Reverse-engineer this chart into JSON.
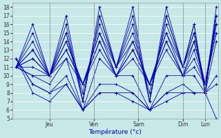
{
  "xlabel": "Température (°c)",
  "bg_color": "#c8e8e8",
  "line_color": "#0000bb",
  "grid_color": "#b0d0d0",
  "ylim": [
    5,
    18.5
  ],
  "yticks": [
    5,
    6,
    7,
    8,
    9,
    10,
    11,
    12,
    13,
    14,
    15,
    16,
    17,
    18
  ],
  "xlim": [
    -2,
    109
  ],
  "day_ticks": [
    18,
    42,
    66,
    90,
    102
  ],
  "day_labels": [
    "Jeu",
    "Ven",
    "Sam",
    "Dim",
    "Lun"
  ],
  "forecast_series": [
    {
      "x": [
        0,
        9,
        18,
        27,
        36,
        45,
        54,
        63,
        72,
        81,
        90,
        96,
        102,
        108
      ],
      "y": [
        11,
        16,
        10,
        17,
        7,
        18,
        11,
        18,
        7,
        18,
        11,
        16,
        8,
        18
      ]
    },
    {
      "x": [
        0,
        9,
        18,
        27,
        36,
        45,
        54,
        63,
        72,
        81,
        90,
        96,
        102,
        108
      ],
      "y": [
        11,
        15,
        10,
        16,
        7,
        17,
        11,
        17,
        7,
        17,
        11,
        16,
        8,
        17
      ]
    },
    {
      "x": [
        0,
        9,
        18,
        27,
        36,
        45,
        54,
        63,
        72,
        81,
        90,
        96,
        102,
        108
      ],
      "y": [
        11,
        14,
        10,
        15,
        7,
        17,
        11,
        16,
        7,
        17,
        11,
        15,
        8,
        17
      ]
    },
    {
      "x": [
        0,
        9,
        18,
        27,
        36,
        45,
        54,
        63,
        72,
        81,
        90,
        96,
        102,
        108
      ],
      "y": [
        11,
        13,
        10,
        15,
        8,
        16,
        11,
        15,
        8,
        16,
        11,
        15,
        9,
        17
      ]
    },
    {
      "x": [
        0,
        9,
        18,
        27,
        36,
        45,
        54,
        63,
        72,
        81,
        90,
        96,
        102,
        108
      ],
      "y": [
        11,
        13,
        10,
        14,
        9,
        15,
        11,
        14,
        9,
        15,
        11,
        14,
        9,
        16
      ]
    },
    {
      "x": [
        0,
        9,
        18,
        27,
        36,
        45,
        54,
        63,
        72,
        81,
        90,
        96,
        102,
        108
      ],
      "y": [
        11,
        12,
        10,
        14,
        9,
        15,
        10,
        14,
        9,
        15,
        10,
        14,
        9,
        16
      ]
    },
    {
      "x": [
        0,
        9,
        18,
        27,
        36,
        45,
        54,
        63,
        72,
        81,
        90,
        96,
        102,
        108
      ],
      "y": [
        11,
        12,
        10,
        13,
        9,
        14,
        10,
        13,
        9,
        14,
        10,
        13,
        9,
        15
      ]
    },
    {
      "x": [
        0,
        9,
        18,
        27,
        36,
        45,
        54,
        63,
        72,
        81,
        90,
        96,
        102,
        108
      ],
      "y": [
        11,
        11,
        10,
        13,
        9,
        14,
        10,
        13,
        9,
        14,
        10,
        12,
        9,
        15
      ]
    },
    {
      "x": [
        0,
        9,
        18,
        27,
        36,
        45,
        54,
        63,
        72,
        81,
        90,
        96,
        102,
        108
      ],
      "y": [
        11,
        10,
        10,
        12,
        9,
        13,
        10,
        12,
        9,
        13,
        10,
        11,
        9,
        16
      ]
    },
    {
      "x": [
        0,
        9,
        18,
        27,
        36,
        45,
        54,
        63,
        72,
        81,
        90,
        96,
        102,
        108
      ],
      "y": [
        11,
        10,
        9,
        12,
        6,
        12,
        10,
        10,
        6,
        10,
        10,
        10,
        8,
        14
      ]
    },
    {
      "x": [
        0,
        9,
        18,
        27,
        36,
        45,
        54,
        63,
        72,
        81,
        90,
        96,
        102,
        108
      ],
      "y": [
        12,
        9,
        8,
        10,
        6,
        9,
        9,
        8,
        6,
        8,
        9,
        8,
        8,
        10
      ]
    },
    {
      "x": [
        0,
        9,
        18,
        27,
        36,
        45,
        54,
        63,
        72,
        81,
        90,
        96,
        102,
        108
      ],
      "y": [
        12,
        9,
        8,
        9,
        6,
        8,
        8,
        8,
        6,
        8,
        8,
        8,
        8,
        9
      ]
    },
    {
      "x": [
        0,
        9,
        18,
        27,
        36,
        45,
        54,
        63,
        72,
        81,
        90,
        96,
        102,
        108
      ],
      "y": [
        12,
        8,
        7,
        9,
        6,
        8,
        8,
        7,
        6,
        7,
        8,
        8,
        8,
        5
      ]
    }
  ]
}
